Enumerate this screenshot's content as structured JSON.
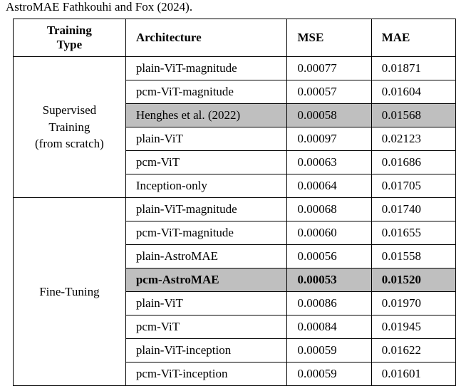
{
  "caption_prefix": "AstroMAE Fathkouhi and Fox (2024).",
  "table": {
    "columns": [
      "Training Type",
      "Architecture",
      "MSE",
      "MAE"
    ],
    "header_style": {
      "font_weight": "bold",
      "fontsize_pt": 13,
      "border_color": "#000000",
      "background_color": "#ffffff"
    },
    "highlight_color": "#bfbfbf",
    "groups": [
      {
        "label_lines": [
          "Supervised",
          "Training",
          "(from scratch)"
        ],
        "rows": [
          {
            "arch": "plain-ViT-magnitude",
            "mse": "0.00077",
            "mae": "0.01871"
          },
          {
            "arch": "pcm-ViT-magnitude",
            "mse": "0.00057",
            "mae": "0.01604"
          },
          {
            "arch": "Henghes et al. (2022)",
            "mse": "0.00058",
            "mae": "0.01568",
            "highlight": true
          },
          {
            "arch": "plain-ViT",
            "mse": "0.00097",
            "mae": "0.02123"
          },
          {
            "arch": "pcm-ViT",
            "mse": "0.00063",
            "mae": "0.01686"
          },
          {
            "arch": "Inception-only",
            "mse": "0.00064",
            "mae": "0.01705"
          }
        ]
      },
      {
        "label_lines": [
          "Fine-Tuning"
        ],
        "rows": [
          {
            "arch": "plain-ViT-magnitude",
            "mse": "0.00068",
            "mae": "0.01740"
          },
          {
            "arch": "pcm-ViT-magnitude",
            "mse": "0.00060",
            "mae": "0.01655"
          },
          {
            "arch": "plain-AstroMAE",
            "mse": "0.00056",
            "mae": "0.01558"
          },
          {
            "arch": "pcm-AstroMAE",
            "mse": "0.00053",
            "mae": "0.01520",
            "highlight": true,
            "bold": true
          },
          {
            "arch": "plain-ViT",
            "mse": "0.00086",
            "mae": "0.01970"
          },
          {
            "arch": "pcm-ViT",
            "mse": "0.00084",
            "mae": "0.01945"
          },
          {
            "arch": "plain-ViT-inception",
            "mse": "0.00059",
            "mae": "0.01622"
          },
          {
            "arch": "pcm-ViT-inception",
            "mse": "0.00059",
            "mae": "0.01601"
          }
        ]
      }
    ]
  }
}
